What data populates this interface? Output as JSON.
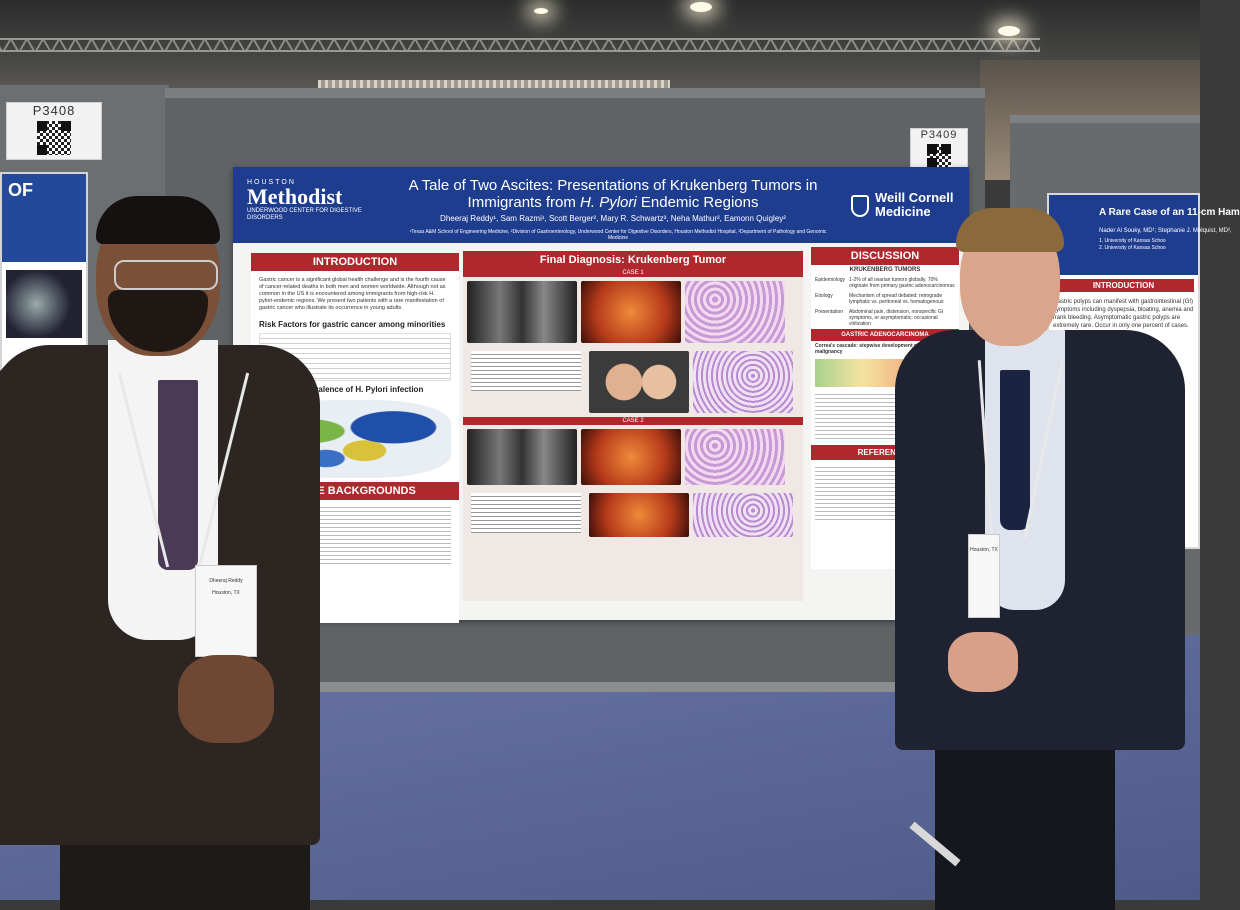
{
  "scene": {
    "colors": {
      "poster_header": "#1f3d8f",
      "section_red": "#b0272d",
      "carpet": "#5a6797",
      "booth_wall": "#5f6366"
    }
  },
  "placards": [
    {
      "number": "P3408"
    },
    {
      "number": "P3409"
    }
  ],
  "left_poster": {
    "partial_title": "OF"
  },
  "poster": {
    "logo_left": {
      "top": "HOUSTON",
      "brand": "Methodist",
      "sub": "UNDERWOOD CENTER FOR DIGESTIVE DISORDERS"
    },
    "title_line1": "A Tale of Two Ascites: Presentations of Krukenberg Tumors in",
    "title_line2_prefix": "Immigrants from ",
    "title_line2_italic": "H. Pylori",
    "title_line2_suffix": " Endemic Regions",
    "authors": "Dheeraj Reddy¹, Sam Razmi¹, Scott Berger², Mary R. Schwartz³, Neha Mathur², Eamonn Quigley²",
    "affiliations": "¹Texas A&M School of Engineering Medicine, ²Division of Gastroenterology, Underwood Center for Digestive Disorders, Houston Methodist Hospital, ³Department of Pathology and Genomic Medicine",
    "logo_right": {
      "line1": "Weill Cornell",
      "line2": "Medicine"
    },
    "introduction": {
      "heading": "INTRODUCTION",
      "text": "Gastric cancer is a significant global health challenge and is the fourth cause of cancer-related deaths in both men and women worldwide. Although not as common in the US it is encountered among immigrants from high-risk H. pylori-endemic regions. We present two patients with a rare manifestation of gastric cancer who illustrate its occurrence in young adults.",
      "risk_heading": "Risk Factors for gastric cancer among minorities",
      "map_heading": "Worldwide prevalence of H. Pylori infection"
    },
    "case_backgrounds": {
      "heading": "CASE BACKGROUNDS"
    },
    "final_diagnosis": {
      "heading": "Final Diagnosis: Krukenberg Tumor",
      "case1": "CASE 1",
      "case2": "CASE 2"
    },
    "discussion": {
      "heading": "DISCUSSION",
      "sub": "KRUKENBERG TUMORS",
      "rows": [
        {
          "label": "Epidemiology",
          "text": "1-2% of all ovarian tumors globally. 70% originate from primary gastric adenocarcinomas"
        },
        {
          "label": "Etiology",
          "text": "Mechanism of spread debated: retrograde lymphatic vs. peritoneal vs. hematogenous"
        },
        {
          "label": "Presentation",
          "text": "Abdominal pain, distension, nonspecific GI symptoms, or asymptomatic; occasional virilization"
        }
      ],
      "adeno_heading": "GASTRIC ADENOCARCINOMA",
      "cascade": "Correa's cascade: stepwise development of gastric malignancy",
      "references_heading": "REFERENCES"
    }
  },
  "right_poster": {
    "title": "A Rare Case of an 11-cm Ham",
    "authors": "Nader Al Souky, MD¹; Stephanie J. Melquist, MD²,",
    "affil1": "1. University of Kansas Schoo",
    "affil2": "2. University of Kansas Schoo",
    "intro_heading": "INTRODUCTION",
    "intro_text": "Gastric polyps can manifest with gastrointestinal (GI) symptoms including dyspepsia, bloating, anemia and frank bleeding. Asymptomatic gastric polyps are extremely rare. Occur in only one percent of cases."
  },
  "badges": {
    "left": {
      "name": "Dheeraj Reddy",
      "city": "Houston, TX"
    },
    "right": {
      "city": "Houston, TX"
    }
  }
}
